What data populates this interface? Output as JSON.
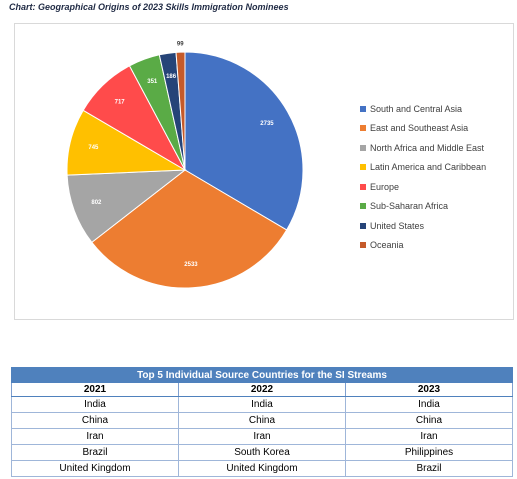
{
  "caption": "Chart: Geographical Origins of 2023 Skills Immigration Nominees",
  "chart_data": {
    "type": "pie",
    "title": "",
    "slices": [
      {
        "label": "South and Central Asia",
        "value": 2735,
        "color": "#4472c4"
      },
      {
        "label": "East and Southeast Asia",
        "value": 2533,
        "color": "#ed7d31"
      },
      {
        "label": "North Africa and Middle East",
        "value": 802,
        "color": "#a5a5a5"
      },
      {
        "label": "Latin America and Caribbean",
        "value": 745,
        "color": "#ffc000"
      },
      {
        "label": "Europe",
        "value": 717,
        "color": "#ff4b4b"
      },
      {
        "label": "Sub-Saharan Africa",
        "value": 351,
        "color": "#5aab46"
      },
      {
        "label": "United States",
        "value": 186,
        "color": "#264478"
      },
      {
        "label": "Oceania",
        "value": 99,
        "color": "#c55a2a"
      }
    ],
    "legend_position": "right"
  },
  "table": {
    "title": "Top 5 Individual Source Countries for the SI Streams",
    "header_color": "#4f81bd",
    "columns": [
      "2021",
      "2022",
      "2023"
    ],
    "rows": [
      [
        "India",
        "India",
        "India"
      ],
      [
        "China",
        "China",
        "China"
      ],
      [
        "Iran",
        "Iran",
        "Iran"
      ],
      [
        "Brazil",
        "South Korea",
        "Philippines"
      ],
      [
        "United Kingdom",
        "United Kingdom",
        "Brazil"
      ]
    ]
  }
}
